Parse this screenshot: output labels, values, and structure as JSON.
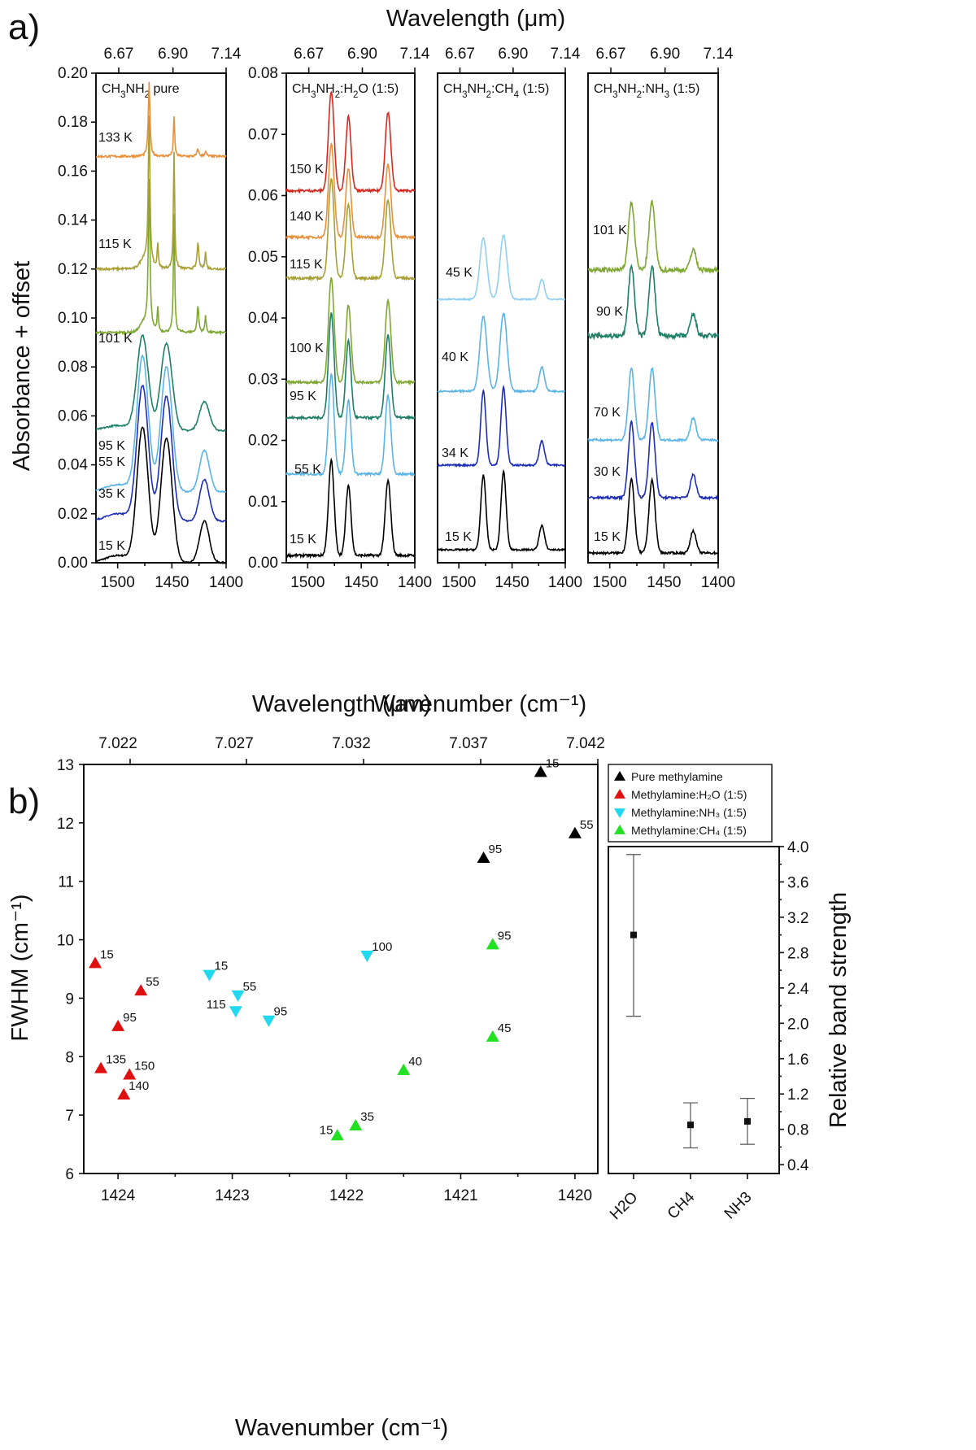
{
  "figure_a": {
    "letter": "a)",
    "top_label": "Wavelength (μm)",
    "bottom_label": "Wavenumber (cm⁻¹)",
    "y_label": "Absorbance + offset",
    "top_ticks": [
      "6.67",
      "6.90",
      "7.14"
    ],
    "x_ticks": [
      "1500",
      "1450",
      "1400"
    ],
    "pure_y_ticks": [
      "0.00",
      "0.02",
      "0.04",
      "0.06",
      "0.08",
      "0.10",
      "0.12",
      "0.14",
      "0.16",
      "0.18",
      "0.20"
    ],
    "mix_y_ticks": [
      "0.00",
      "0.01",
      "0.02",
      "0.03",
      "0.04",
      "0.05",
      "0.06",
      "0.07",
      "0.08"
    ]
  },
  "chart_data": [
    {
      "type": "line",
      "panel": "a-1",
      "title": "CH3NH2 pure",
      "xlim": [
        1520,
        1400
      ],
      "ylim": [
        0,
        0.2
      ],
      "series": [
        {
          "name": "15 K",
          "color": "#000000",
          "offset": 0.0,
          "style": "broad"
        },
        {
          "name": "35 K",
          "color": "#1f2fb5",
          "offset": 0.017,
          "style": "broad"
        },
        {
          "name": "55 K",
          "color": "#5bb4e6",
          "offset": 0.029,
          "style": "broad"
        },
        {
          "name": "95 K",
          "color": "#1f7f66",
          "offset": 0.054,
          "style": "broad"
        },
        {
          "name": "101 K",
          "color": "#7fa832",
          "offset": 0.094,
          "style": "sharp"
        },
        {
          "name": "115 K",
          "color": "#a8a034",
          "offset": 0.12,
          "style": "sharp"
        },
        {
          "name": "133 K",
          "color": "#e8903a",
          "offset": 0.166,
          "style": "sharp"
        }
      ]
    },
    {
      "type": "line",
      "panel": "a-2",
      "title": "CH3NH2:H2O (1:5)",
      "xlim": [
        1520,
        1400
      ],
      "ylim": [
        0,
        0.08
      ],
      "series": [
        {
          "name": "15 K",
          "color": "#000000",
          "offset": 0.0012
        },
        {
          "name": "55 K",
          "color": "#5bb4e6",
          "offset": 0.0145
        },
        {
          "name": "95 K",
          "color": "#1f7f66",
          "offset": 0.0237
        },
        {
          "name": "100 K",
          "color": "#7fa832",
          "offset": 0.0295
        },
        {
          "name": "115 K",
          "color": "#a8a034",
          "offset": 0.0465
        },
        {
          "name": "140 K",
          "color": "#e8903a",
          "offset": 0.0532
        },
        {
          "name": "150 K",
          "color": "#d42a20",
          "offset": 0.0608
        }
      ]
    },
    {
      "type": "line",
      "panel": "a-3",
      "title": "CH3NH2:CH4 (1:5)",
      "xlim": [
        1520,
        1400
      ],
      "series": [
        {
          "name": "15 K",
          "color": "#000000",
          "offset": 0.0
        },
        {
          "name": "34 K",
          "color": "#1f2fb5",
          "offset": 0.2
        },
        {
          "name": "40 K",
          "color": "#5bb4e6",
          "offset": 0.42
        },
        {
          "name": "45 K",
          "color": "#90d0f0",
          "offset": 0.63
        }
      ]
    },
    {
      "type": "line",
      "panel": "a-4",
      "title": "CH3NH2:NH3 (1:5)",
      "xlim": [
        1520,
        1400
      ],
      "series": [
        {
          "name": "15 K",
          "color": "#000000",
          "offset": 0.0
        },
        {
          "name": "30 K",
          "color": "#1f2fb5",
          "offset": 0.15
        },
        {
          "name": "70 K",
          "color": "#5bb4e6",
          "offset": 0.3
        },
        {
          "name": "90 K",
          "color": "#1f7f66",
          "offset": 0.53
        },
        {
          "name": "101 K",
          "color": "#7fa832",
          "offset": 0.74
        }
      ]
    },
    {
      "type": "scatter",
      "panel": "b-main",
      "xlabel": "Wavenumber (cm⁻¹)",
      "ylabel": "FWHM (cm⁻¹)",
      "top_label": "Wavelength (μm)",
      "xlim": [
        1424.3,
        1419.8
      ],
      "ylim": [
        6,
        13
      ],
      "x_ticks": [
        "1424",
        "1423",
        "1422",
        "1421",
        "1420"
      ],
      "top_ticks": [
        "7.022",
        "7.027",
        "7.032",
        "7.037",
        "7.042"
      ],
      "y_ticks": [
        "6",
        "7",
        "8",
        "9",
        "10",
        "11",
        "12",
        "13"
      ],
      "series": [
        {
          "name": "Pure methylamine",
          "color": "#000000",
          "marker": "up",
          "points": [
            [
              1420.3,
              12.87,
              "15"
            ],
            [
              1420.0,
              11.82,
              "55"
            ],
            [
              1420.8,
              11.4,
              "95"
            ]
          ]
        },
        {
          "name": "Methylamine:H₂O (1:5)",
          "color": "#e01010",
          "marker": "up",
          "points": [
            [
              1424.2,
              9.6,
              "15"
            ],
            [
              1423.8,
              9.13,
              "55"
            ],
            [
              1424.0,
              8.52,
              "95"
            ],
            [
              1424.15,
              7.8,
              "135"
            ],
            [
              1423.9,
              7.69,
              "150"
            ],
            [
              1423.95,
              7.35,
              "140"
            ]
          ]
        },
        {
          "name": "Methylamine:NH₃ (1:5)",
          "color": "#22d8ee",
          "marker": "down",
          "points": [
            [
              1423.2,
              9.4,
              "15"
            ],
            [
              1422.95,
              9.05,
              "55"
            ],
            [
              1422.97,
              8.78,
              "115"
            ],
            [
              1422.68,
              8.62,
              "95"
            ],
            [
              1421.82,
              9.73,
              "100"
            ]
          ]
        },
        {
          "name": "Methylamine:CH₄ (1:5)",
          "color": "#22e022",
          "marker": "up",
          "points": [
            [
              1422.08,
              6.65,
              "15"
            ],
            [
              1421.92,
              6.82,
              "35"
            ],
            [
              1421.5,
              7.77,
              "40"
            ],
            [
              1420.72,
              8.34,
              "45"
            ],
            [
              1420.72,
              9.92,
              "95"
            ]
          ]
        }
      ]
    },
    {
      "type": "scatter",
      "panel": "b-inset",
      "ylabel": "Relative band strength",
      "categories": [
        "H2O",
        "CH4",
        "NH3"
      ],
      "ylim": [
        0.3,
        4.0
      ],
      "y_ticks": [
        "0.4",
        "0.8",
        "1.2",
        "1.6",
        "2.0",
        "2.4",
        "2.8",
        "3.2",
        "3.6",
        "4.0"
      ],
      "values": [
        3.0,
        0.85,
        0.89
      ],
      "err_low": [
        2.08,
        0.59,
        0.63
      ],
      "err_high": [
        3.91,
        1.1,
        1.15
      ]
    }
  ],
  "figure_b": {
    "letter": "b)"
  }
}
